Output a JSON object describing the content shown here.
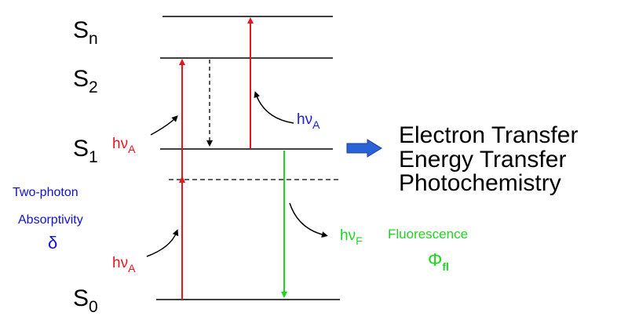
{
  "colors": {
    "absorption": "#e8141e",
    "fluorescence": "#22d422",
    "two_photon": "#1010d8",
    "arrow_fill": "#2a62d8",
    "ink": "#000000"
  },
  "levels": {
    "s0": {
      "base": "S",
      "sub": "0"
    },
    "s1": {
      "base": "S",
      "sub": "1"
    },
    "s2": {
      "base": "S",
      "sub": "2"
    },
    "sn": {
      "base": "S",
      "sub": "n"
    }
  },
  "photons": {
    "absorption_base": "hν",
    "absorption_sub": "A",
    "fluorescence_base": "hν",
    "fluorescence_sub": "F"
  },
  "two_photon": {
    "line1": "Two-photon",
    "line2": "Absorptivity",
    "symbol": "δ"
  },
  "fluorescence": {
    "label": "Fluorescence",
    "yield_base": "Φ",
    "yield_sub": "fl"
  },
  "processes": [
    "Electron Transfer",
    "Energy Transfer",
    "Photochemistry"
  ],
  "icons": {
    "process_arrow": "block-arrow-right-icon"
  }
}
